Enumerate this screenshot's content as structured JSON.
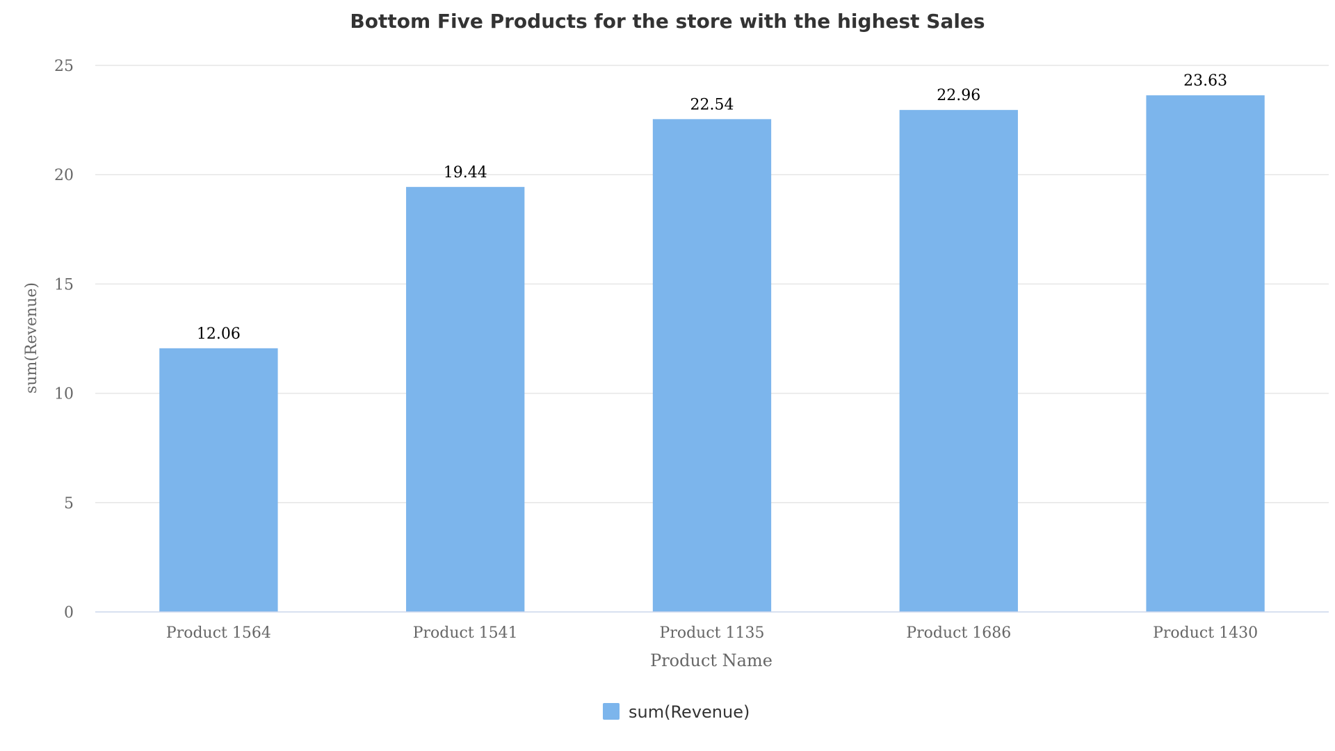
{
  "chart_data": {
    "type": "bar",
    "title": "Bottom Five Products for the store with the highest Sales",
    "xlabel": "Product Name",
    "ylabel": "sum(Revenue)",
    "categories": [
      "Product 1564",
      "Product 1541",
      "Product 1135",
      "Product 1686",
      "Product 1430"
    ],
    "series": [
      {
        "name": "sum(Revenue)",
        "values": [
          12.06,
          19.44,
          22.54,
          22.96,
          23.63
        ],
        "color": "#7cb5ec"
      }
    ],
    "ylim": [
      0,
      25
    ],
    "yticks": [
      0,
      5,
      10,
      15,
      20,
      25
    ],
    "grid": true,
    "legend_position": "bottom-center",
    "data_labels": true
  },
  "colors": {
    "bar": "#7cb5ec",
    "grid": "#e6e6e6",
    "axis_line": "#ccd6eb"
  }
}
